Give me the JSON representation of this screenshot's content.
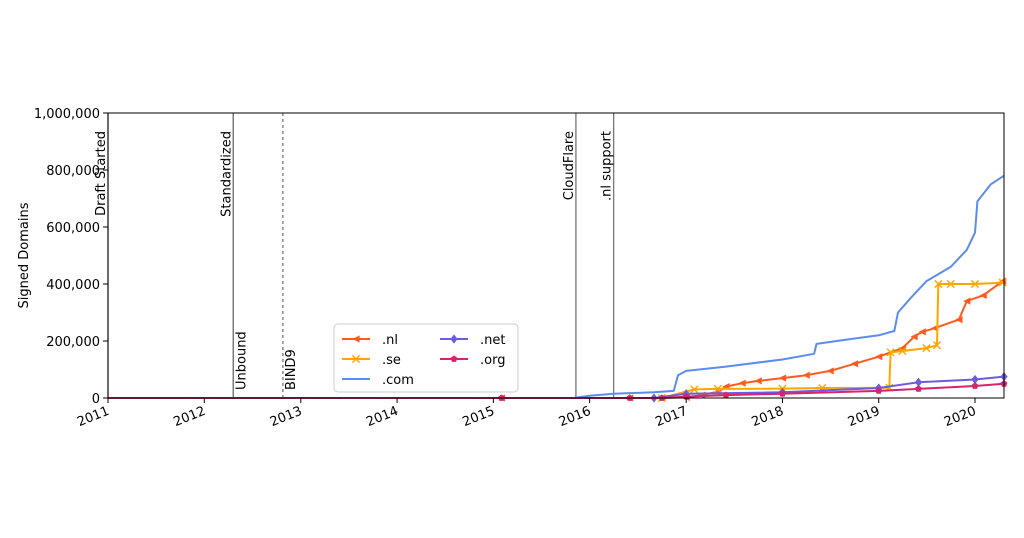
{
  "chart_data": {
    "type": "line",
    "title": "",
    "xlabel": "",
    "ylabel": "Signed Domains",
    "x_axis": {
      "type": "date",
      "range": [
        "2011-01-01",
        "2020-04-20"
      ]
    },
    "y_axis": {
      "range": [
        0,
        1000000
      ]
    },
    "y_ticks": [
      {
        "value": 0,
        "label": "0"
      },
      {
        "value": 200000,
        "label": "200,000"
      },
      {
        "value": 400000,
        "label": "400,000"
      },
      {
        "value": 600000,
        "label": "600,000"
      },
      {
        "value": 800000,
        "label": "800,000"
      },
      {
        "value": 1000000,
        "label": "1,000,000"
      }
    ],
    "x_ticks": [
      {
        "date": "2011-01-01",
        "label": "2011"
      },
      {
        "date": "2012-01-01",
        "label": "2012"
      },
      {
        "date": "2013-01-01",
        "label": "2013"
      },
      {
        "date": "2014-01-01",
        "label": "2014"
      },
      {
        "date": "2015-01-01",
        "label": "2015"
      },
      {
        "date": "2016-01-01",
        "label": "2016"
      },
      {
        "date": "2017-01-01",
        "label": "2017"
      },
      {
        "date": "2018-01-01",
        "label": "2018"
      },
      {
        "date": "2019-01-01",
        "label": "2019"
      },
      {
        "date": "2020-01-01",
        "label": "2020"
      }
    ],
    "grid": false,
    "legend": {
      "placement": "lower-center",
      "columns": 2
    },
    "annotations": [
      {
        "label": "Draft Started",
        "date": "2011-01-01",
        "style": "solid",
        "text_position": "top"
      },
      {
        "label": "Standardized",
        "date": "2012-04-20",
        "style": "solid",
        "text_position": "top"
      },
      {
        "label": "Unbound",
        "date": "2012-04-20",
        "style": "solid",
        "text_position": "bottom"
      },
      {
        "label": "BIND9",
        "date": "2012-10-25",
        "style": "dashed",
        "text_position": "bottom"
      },
      {
        "label": "CloudFlare",
        "date": "2015-11-10",
        "style": "solid",
        "text_position": "top"
      },
      {
        "label": ".nl support",
        "date": "2016-04-01",
        "style": "solid",
        "text_position": "top"
      }
    ],
    "series": [
      {
        "name": ".nl",
        "color": "#ff5a1f",
        "marker": "triangle-left",
        "points": [
          [
            "2011-01-01",
            0
          ],
          [
            "2015-02-01",
            0
          ],
          [
            "2016-06-01",
            0
          ],
          [
            "2016-10-01",
            0
          ],
          [
            "2017-01-01",
            2000
          ],
          [
            "2017-03-01",
            10000
          ],
          [
            "2017-05-01",
            22000
          ],
          [
            "2017-06-01",
            40000
          ],
          [
            "2017-08-01",
            52000
          ],
          [
            "2017-10-01",
            60000
          ],
          [
            "2018-01-01",
            70000
          ],
          [
            "2018-04-01",
            80000
          ],
          [
            "2018-07-01",
            95000
          ],
          [
            "2018-10-01",
            120000
          ],
          [
            "2019-01-01",
            145000
          ],
          [
            "2019-04-01",
            175000
          ],
          [
            "2019-05-15",
            215000
          ],
          [
            "2019-06-15",
            232000
          ],
          [
            "2019-08-01",
            245000
          ],
          [
            "2019-11-01",
            275000
          ],
          [
            "2019-12-01",
            340000
          ],
          [
            "2020-02-01",
            360000
          ],
          [
            "2020-04-15",
            410000
          ]
        ]
      },
      {
        "name": ".se",
        "color": "#ffa500",
        "marker": "x",
        "points": [
          [
            "2011-01-01",
            0
          ],
          [
            "2016-10-01",
            0
          ],
          [
            "2017-02-01",
            30000
          ],
          [
            "2017-05-01",
            32000
          ],
          [
            "2018-01-01",
            33000
          ],
          [
            "2018-06-01",
            35000
          ],
          [
            "2019-02-10",
            36000
          ],
          [
            "2019-02-15",
            160000
          ],
          [
            "2019-04-01",
            165000
          ],
          [
            "2019-07-01",
            175000
          ],
          [
            "2019-08-10",
            185000
          ],
          [
            "2019-08-15",
            400000
          ],
          [
            "2019-10-01",
            400000
          ],
          [
            "2020-01-01",
            400000
          ],
          [
            "2020-04-15",
            405000
          ]
        ]
      },
      {
        "name": ".com",
        "color": "#5b8def",
        "marker": "none",
        "points": [
          [
            "2011-01-01",
            0
          ],
          [
            "2015-11-01",
            0
          ],
          [
            "2016-01-01",
            8000
          ],
          [
            "2016-04-01",
            15000
          ],
          [
            "2016-09-01",
            20000
          ],
          [
            "2016-11-15",
            25000
          ],
          [
            "2016-12-01",
            80000
          ],
          [
            "2017-01-01",
            95000
          ],
          [
            "2017-06-01",
            110000
          ],
          [
            "2018-01-01",
            135000
          ],
          [
            "2018-05-01",
            155000
          ],
          [
            "2018-05-10",
            190000
          ],
          [
            "2018-09-01",
            205000
          ],
          [
            "2019-01-01",
            220000
          ],
          [
            "2019-03-01",
            235000
          ],
          [
            "2019-03-15",
            300000
          ],
          [
            "2019-05-01",
            350000
          ],
          [
            "2019-07-01",
            410000
          ],
          [
            "2019-10-01",
            460000
          ],
          [
            "2019-12-01",
            520000
          ],
          [
            "2020-01-01",
            580000
          ],
          [
            "2020-01-10",
            690000
          ],
          [
            "2020-03-01",
            750000
          ],
          [
            "2020-04-20",
            780000
          ]
        ]
      },
      {
        "name": ".net",
        "color": "#6b5ce0",
        "marker": "diamond",
        "points": [
          [
            "2011-01-01",
            0
          ],
          [
            "2016-09-01",
            0
          ],
          [
            "2017-01-01",
            15000
          ],
          [
            "2018-01-01",
            20000
          ],
          [
            "2019-01-01",
            35000
          ],
          [
            "2019-06-01",
            55000
          ],
          [
            "2020-01-01",
            65000
          ],
          [
            "2020-04-20",
            75000
          ]
        ]
      },
      {
        "name": ".org",
        "color": "#d6246e",
        "marker": "pentagon",
        "points": [
          [
            "2011-01-01",
            0
          ],
          [
            "2015-02-01",
            0
          ],
          [
            "2016-06-01",
            0
          ],
          [
            "2016-10-01",
            0
          ],
          [
            "2017-01-01",
            5000
          ],
          [
            "2017-06-01",
            10000
          ],
          [
            "2018-01-01",
            15000
          ],
          [
            "2019-01-01",
            25000
          ],
          [
            "2019-06-01",
            32000
          ],
          [
            "2020-01-01",
            42000
          ],
          [
            "2020-04-20",
            50000
          ]
        ]
      }
    ]
  }
}
